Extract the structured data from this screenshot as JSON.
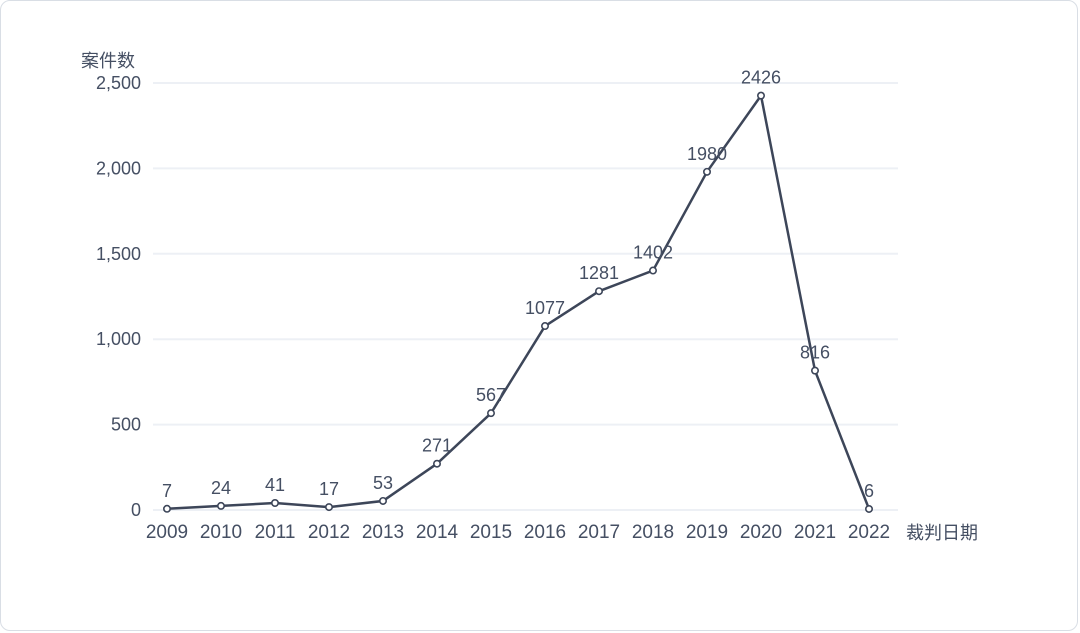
{
  "chart_data": {
    "type": "line",
    "title": "",
    "ylabel": "案件数",
    "xlabel": "裁判日期",
    "categories": [
      "2009",
      "2010",
      "2011",
      "2012",
      "2013",
      "2014",
      "2015",
      "2016",
      "2017",
      "2018",
      "2019",
      "2020",
      "2021",
      "2022"
    ],
    "values": [
      7,
      24,
      41,
      17,
      53,
      271,
      567,
      1077,
      1281,
      1402,
      1980,
      2426,
      816,
      6
    ],
    "data_labels": [
      "7",
      "24",
      "41",
      "17",
      "53",
      "271",
      "567",
      "1077",
      "1281",
      "1402",
      "1980",
      "2426",
      "816",
      "6"
    ],
    "y_ticks": [
      {
        "value": 0,
        "label": "0"
      },
      {
        "value": 500,
        "label": "500"
      },
      {
        "value": 1000,
        "label": "1,000"
      },
      {
        "value": 1500,
        "label": "1,500"
      },
      {
        "value": 2000,
        "label": "2,000"
      },
      {
        "value": 2500,
        "label": "2,500"
      }
    ],
    "ylim": [
      0,
      2500
    ],
    "grid": true,
    "legend": "none",
    "colors": {
      "line": "#3d4659",
      "marker_fill": "#ffffff",
      "marker_stroke": "#3d4659",
      "text": "#454f63",
      "gridline": "#edf0f5",
      "card_border": "#d9dee5",
      "background": "#ffffff"
    }
  }
}
